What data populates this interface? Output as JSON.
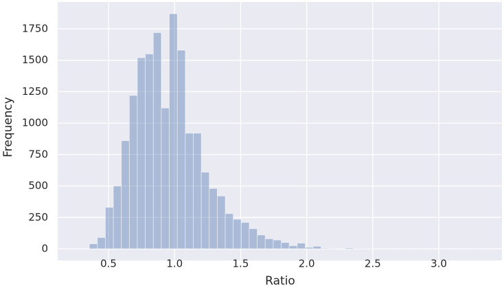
{
  "chart_data": {
    "type": "histogram",
    "xlabel": "Ratio",
    "ylabel": "Frequency",
    "bins": [
      0.355,
      0.4155,
      0.476,
      0.5365,
      0.597,
      0.6575,
      0.718,
      0.7785,
      0.839,
      0.8995,
      0.96,
      1.0205,
      1.081,
      1.1415,
      1.202,
      1.2625,
      1.323,
      1.3835,
      1.444,
      1.5045,
      1.565,
      1.6255,
      1.686,
      1.7465,
      1.807,
      1.8675,
      1.928,
      1.9885,
      2.049,
      2.1095,
      2.17,
      2.2305,
      2.291,
      2.3515,
      2.412,
      2.4725,
      2.533,
      2.5935,
      2.654,
      2.7145,
      2.775,
      2.8355,
      2.896,
      2.9565,
      3.017,
      3.0775,
      3.138,
      3.1985,
      3.259,
      3.3195
    ],
    "values": [
      40,
      90,
      330,
      500,
      860,
      1220,
      1520,
      1550,
      1720,
      1120,
      1870,
      1580,
      920,
      920,
      610,
      480,
      420,
      280,
      235,
      210,
      160,
      110,
      80,
      70,
      50,
      25,
      45,
      12,
      20,
      5,
      4,
      2,
      8,
      4,
      3,
      2,
      1,
      1,
      0,
      1,
      0,
      1,
      0,
      0,
      1,
      0,
      0,
      0,
      1
    ],
    "color": "#4c72b0",
    "xlim": [
      0.115,
      3.478
    ],
    "ylim": [
      -93,
      1963
    ],
    "xticks": [
      0.5,
      {
        "value": 1,
        "label": "1.0"
      },
      1.5,
      {
        "value": 2,
        "label": "2.0"
      },
      2.5,
      {
        "value": 3,
        "label": "3.0"
      }
    ],
    "yticks": [
      0,
      250,
      500,
      750,
      1000,
      1250,
      1500,
      1750
    ],
    "grid": true
  }
}
